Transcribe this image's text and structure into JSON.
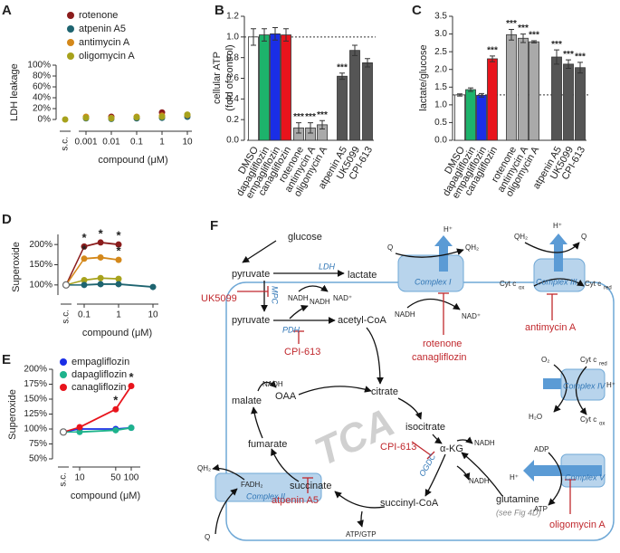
{
  "chart_data": [
    {
      "panel": "A",
      "type": "scatter",
      "y_label": "LDH leakage",
      "x_label": "compound (μM)",
      "log_x": true,
      "x": [
        0.001,
        0.01,
        0.1,
        1,
        10
      ],
      "xlim": [
        0.001,
        10
      ],
      "xticks": [
        0.001,
        0.01,
        0.1,
        1,
        10
      ],
      "sc_label": "s.c.",
      "sc": 0,
      "ylim": [
        0,
        100
      ],
      "yticks": [
        {
          "value": 0,
          "label": "0%"
        },
        {
          "value": 20,
          "label": "20%"
        },
        {
          "value": 40,
          "label": "40%"
        },
        {
          "value": 60,
          "label": "60%"
        },
        {
          "value": 80,
          "label": "80%"
        },
        {
          "value": 100,
          "label": "100%"
        }
      ],
      "legend": "top-left",
      "series": [
        {
          "name": "rotenone",
          "color": "#8b1c1c",
          "values": [
            4,
            5,
            3,
            13,
            8
          ]
        },
        {
          "name": "atpenin A5",
          "color": "#1e6470",
          "values": [
            2,
            1,
            2,
            3,
            5
          ]
        },
        {
          "name": "antimycin A",
          "color": "#d4881a",
          "values": [
            5,
            3,
            5,
            7,
            8
          ]
        },
        {
          "name": "oligomycin A",
          "color": "#a7a21c",
          "values": [
            3,
            2,
            4,
            5,
            9
          ]
        }
      ]
    },
    {
      "panel": "B",
      "type": "bar",
      "y_label": [
        "cellular ATP",
        "(fold of control)"
      ],
      "categories": [
        "DMSO",
        "dapagliflozin",
        "empagliflozin",
        "canagliflozin",
        "rotenone",
        "antimycin A",
        "oligomycin A",
        "atpenin A5",
        "UK5099",
        "CPI-613"
      ],
      "values": [
        1.0,
        1.02,
        1.03,
        1.02,
        0.12,
        0.12,
        0.15,
        0.62,
        0.87,
        0.75
      ],
      "errors": [
        0.08,
        0.06,
        0.06,
        0.06,
        0.05,
        0.05,
        0.04,
        0.03,
        0.05,
        0.04
      ],
      "significance": [
        null,
        null,
        null,
        null,
        "***",
        "***",
        "***",
        "***",
        null,
        null
      ],
      "colors": [
        "#ffffff",
        "#1db36b",
        "#1a2ee6",
        "#e8141c",
        "#a9a9a9",
        "#a9a9a9",
        "#a9a9a9",
        "#555555",
        "#555555",
        "#555555"
      ],
      "reference": 1.0,
      "ylim": [
        0,
        1.2
      ],
      "yticks": [
        {
          "value": 0,
          "label": "0.0"
        },
        {
          "value": 0.2,
          "label": "0.2"
        },
        {
          "value": 0.4,
          "label": "0.4"
        },
        {
          "value": 0.6,
          "label": "0.6"
        },
        {
          "value": 0.8,
          "label": "0.8"
        },
        {
          "value": 1.0,
          "label": "1.0"
        },
        {
          "value": 1.2,
          "label": "1.2"
        }
      ]
    },
    {
      "panel": "C",
      "type": "bar",
      "y_label": [
        "lactate/glucose"
      ],
      "categories": [
        "DMSO",
        "dapagliflozin",
        "empagliflozin",
        "canagliflozin",
        "rotenone",
        "antimycin A",
        "oligomycin A",
        "atpenin A5",
        "UK5099",
        "CPI-613"
      ],
      "values": [
        1.28,
        1.43,
        1.27,
        2.3,
        2.98,
        2.88,
        2.78,
        2.35,
        2.15,
        2.05
      ],
      "errors": [
        0.03,
        0.05,
        0.05,
        0.08,
        0.15,
        0.12,
        0.03,
        0.2,
        0.12,
        0.15
      ],
      "significance": [
        null,
        null,
        null,
        "***",
        "***",
        "***",
        "***",
        "***",
        "***",
        "***"
      ],
      "colors": [
        "#ffffff",
        "#1db36b",
        "#1a2ee6",
        "#e8141c",
        "#a9a9a9",
        "#a9a9a9",
        "#a9a9a9",
        "#555555",
        "#555555",
        "#555555"
      ],
      "reference": 1.28,
      "ylim": [
        0,
        3.5
      ],
      "yticks": [
        {
          "value": 0,
          "label": "0.0"
        },
        {
          "value": 0.5,
          "label": "0.5"
        },
        {
          "value": 1,
          "label": "1.0"
        },
        {
          "value": 1.5,
          "label": "1.5"
        },
        {
          "value": 2,
          "label": "2.0"
        },
        {
          "value": 2.5,
          "label": "2.5"
        },
        {
          "value": 3,
          "label": "3.0"
        },
        {
          "value": 3.5,
          "label": "3.5"
        }
      ]
    },
    {
      "panel": "D",
      "type": "line",
      "y_label": "Superoxide",
      "x_label": "compound (μM)",
      "log_x": true,
      "x": [
        0.1,
        0.3,
        1,
        10
      ],
      "xlim": [
        0.1,
        10
      ],
      "xticks": [
        0.1,
        1,
        10
      ],
      "sc_label": "s.c.",
      "sc": 100,
      "ylim": [
        75,
        225
      ],
      "yticks": [
        {
          "value": 100,
          "label": "100%"
        },
        {
          "value": 150,
          "label": "150%"
        },
        {
          "value": 200,
          "label": "200%"
        }
      ],
      "series": [
        {
          "color": "#8b1c1c",
          "values": [
            195,
            205,
            200,
            null
          ],
          "stars": [
            0,
            1,
            2
          ]
        },
        {
          "color": "#d4881a",
          "values": [
            165,
            168,
            162,
            null
          ],
          "stars": [
            0,
            2
          ]
        },
        {
          "color": "#a7a21c",
          "values": [
            112,
            117,
            115,
            null
          ],
          "stars": []
        },
        {
          "color": "#1e6470",
          "values": [
            100,
            102,
            102,
            95
          ],
          "stars": []
        }
      ],
      "star_label": "*"
    },
    {
      "panel": "E",
      "type": "line",
      "y_label": "Superoxide",
      "x_label": "compound (μM)",
      "log_x": true,
      "x": [
        10,
        50,
        100
      ],
      "xlim": [
        10,
        100
      ],
      "xticks": [
        10,
        50,
        100
      ],
      "sc_label": "s.c.",
      "sc": 95,
      "ylim": [
        50,
        200
      ],
      "yticks": [
        {
          "value": 50,
          "label": "50%"
        },
        {
          "value": 75,
          "label": "75%"
        },
        {
          "value": 100,
          "label": "100%"
        },
        {
          "value": 125,
          "label": "125%"
        },
        {
          "value": 150,
          "label": "150%"
        },
        {
          "value": 175,
          "label": "175%"
        },
        {
          "value": 200,
          "label": "200%"
        }
      ],
      "legend": "top-left",
      "series": [
        {
          "name": "empagliflozin",
          "color": "#1a2ee6",
          "values": [
            100,
            100,
            102
          ],
          "stars": []
        },
        {
          "name": "dapagliflozin",
          "color": "#1db38c",
          "values": [
            95,
            98,
            102
          ],
          "stars": []
        },
        {
          "name": "canagliflozin",
          "color": "#e8141c",
          "values": [
            103,
            133,
            172
          ],
          "stars": [
            1,
            2
          ]
        }
      ],
      "star_label": "*"
    }
  ],
  "diagram": {
    "labels": [
      "F",
      "glucose",
      "pyruvate",
      "LDH",
      "lactate",
      "NADH",
      "NAD⁺",
      "UK5099",
      "MPC",
      "pyruvate",
      "acetyl-CoA",
      "NADH",
      "PDH",
      "CPI-613",
      "NADH",
      "OAA",
      "citrate",
      "isocitrate",
      "NADH",
      "α-KG",
      "CPI-613",
      "OGDC",
      "NADH",
      "glutamine",
      "(see Fig 4D)",
      "succinyl-CoA",
      "ATP/GTP",
      "succinate",
      "atpenin A5",
      "fumarate",
      "malate",
      "FADH₂",
      "Complex II",
      "QH₂",
      "Q",
      "TCA",
      "Complex I",
      "Q",
      "QH₂",
      "H⁺",
      "NADH",
      "NAD⁺",
      "rotenone",
      "canagliflozin",
      "Complex III",
      "QH₂",
      "Q",
      "H⁺",
      "Cyt c",
      "ox",
      "Cyt c",
      "red",
      "antimycin A",
      "Complex IV",
      "O₂",
      "Cyt c",
      "red",
      "H₂O",
      "Cyt c",
      "ox",
      "H⁺",
      "Complex V",
      "ADP",
      "ATP",
      "H⁺",
      "oligomycin A"
    ]
  }
}
